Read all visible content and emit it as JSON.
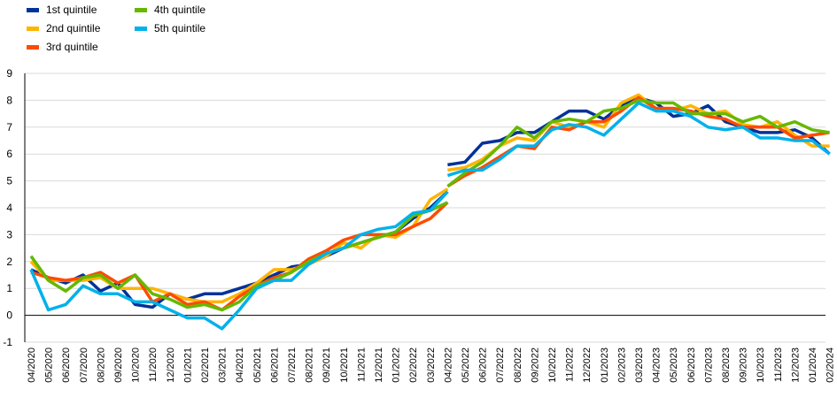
{
  "chart_data": {
    "type": "line",
    "title": "",
    "xlabel": "",
    "ylabel": "",
    "ylim": [
      -1,
      9
    ],
    "yticks": [
      -1,
      0,
      1,
      2,
      3,
      4,
      5,
      6,
      7,
      8,
      9
    ],
    "grid": "horizontal",
    "legend_position": "top-left",
    "categories": [
      "04/2020",
      "05/2020",
      "06/2020",
      "07/2020",
      "08/2020",
      "09/2020",
      "10/2020",
      "11/2020",
      "12/2020",
      "01/2021",
      "02/2021",
      "03/2021",
      "04/2021",
      "05/2021",
      "06/2021",
      "07/2021",
      "08/2021",
      "09/2021",
      "10/2021",
      "11/2021",
      "12/2021",
      "01/2022",
      "02/2022",
      "03/2022",
      "04/2022",
      "05/2022",
      "06/2022",
      "07/2022",
      "08/2022",
      "09/2022",
      "10/2022",
      "11/2022",
      "12/2022",
      "01/2023",
      "02/2023",
      "03/2023",
      "04/2023",
      "05/2023",
      "06/2023",
      "07/2023",
      "08/2023",
      "09/2023",
      "10/2023",
      "11/2023",
      "12/2023",
      "01/2024",
      "02/2024"
    ],
    "series": [
      {
        "name": "1st quintile",
        "color": "#003299",
        "segments": [
          {
            "start": 0,
            "values": [
              1.7,
              1.4,
              1.2,
              1.5,
              0.9,
              1.2,
              0.4,
              0.3,
              0.8,
              0.6,
              0.8,
              0.8,
              1.0,
              1.2,
              1.5,
              1.8,
              1.9,
              2.2,
              2.5,
              2.7,
              2.9,
              3.1,
              3.6,
              4.0,
              4.6
            ]
          },
          {
            "start": 24,
            "values": [
              5.6,
              5.7,
              6.4,
              6.5,
              6.8,
              6.8,
              7.2,
              7.6,
              7.6,
              7.3,
              7.8,
              8.1,
              7.9,
              7.4,
              7.5,
              7.8,
              7.2,
              7.0,
              6.8,
              6.8,
              6.9,
              6.6,
              6.0
            ]
          }
        ]
      },
      {
        "name": "2nd quintile",
        "color": "#FFB400",
        "segments": [
          {
            "start": 0,
            "values": [
              2.0,
              1.3,
              1.3,
              1.3,
              1.4,
              1.0,
              1.0,
              1.0,
              0.8,
              0.6,
              0.5,
              0.5,
              0.8,
              1.2,
              1.7,
              1.7,
              1.9,
              2.2,
              2.7,
              2.5,
              3.0,
              2.9,
              3.3,
              4.3,
              4.7
            ]
          },
          {
            "start": 24,
            "values": [
              5.4,
              5.5,
              5.8,
              6.3,
              6.6,
              6.5,
              7.2,
              7.0,
              7.2,
              7.0,
              7.9,
              8.2,
              7.7,
              7.6,
              7.8,
              7.5,
              7.6,
              7.1,
              7.0,
              7.2,
              6.7,
              6.3,
              6.3
            ]
          }
        ]
      },
      {
        "name": "3rd quintile",
        "color": "#FF4B00",
        "segments": [
          {
            "start": 0,
            "values": [
              1.6,
              1.4,
              1.3,
              1.4,
              1.6,
              1.2,
              1.5,
              0.5,
              0.8,
              0.4,
              0.5,
              0.2,
              0.7,
              1.1,
              1.4,
              1.6,
              2.1,
              2.4,
              2.8,
              3.0,
              3.0,
              3.0,
              3.3,
              3.6,
              4.2
            ]
          },
          {
            "start": 24,
            "values": [
              4.8,
              5.2,
              5.5,
              5.9,
              6.3,
              6.2,
              7.0,
              6.9,
              7.2,
              7.2,
              7.6,
              8.1,
              7.7,
              7.7,
              7.6,
              7.4,
              7.3,
              7.0,
              7.0,
              7.0,
              6.6,
              6.7,
              6.8
            ]
          }
        ]
      },
      {
        "name": "4th quintile",
        "color": "#65B800",
        "segments": [
          {
            "start": 0,
            "values": [
              2.2,
              1.3,
              0.9,
              1.4,
              1.5,
              1.0,
              1.5,
              0.8,
              0.6,
              0.3,
              0.4,
              0.2,
              0.5,
              1.1,
              1.3,
              1.6,
              2.0,
              2.3,
              2.5,
              2.7,
              2.9,
              3.1,
              3.7,
              3.9,
              4.2
            ]
          },
          {
            "start": 24,
            "values": [
              4.8,
              5.3,
              5.7,
              6.3,
              7.0,
              6.6,
              7.2,
              7.3,
              7.2,
              7.6,
              7.7,
              8.0,
              7.9,
              7.9,
              7.5,
              7.5,
              7.5,
              7.2,
              7.4,
              7.0,
              7.2,
              6.9,
              6.8
            ]
          }
        ]
      },
      {
        "name": "5th quintile",
        "color": "#00B1EA",
        "segments": [
          {
            "start": 0,
            "values": [
              1.7,
              0.2,
              0.4,
              1.1,
              0.8,
              0.8,
              0.5,
              0.5,
              0.2,
              -0.1,
              -0.1,
              -0.5,
              0.2,
              1.0,
              1.3,
              1.3,
              1.9,
              2.3,
              2.5,
              3.0,
              3.2,
              3.3,
              3.8,
              3.9,
              4.6
            ]
          },
          {
            "start": 24,
            "values": [
              5.2,
              5.4,
              5.4,
              5.8,
              6.3,
              6.3,
              6.9,
              7.1,
              7.0,
              6.7,
              7.3,
              7.9,
              7.6,
              7.6,
              7.4,
              7.0,
              6.9,
              7.0,
              6.6,
              6.6,
              6.5,
              6.5,
              6.0
            ]
          }
        ]
      }
    ]
  }
}
